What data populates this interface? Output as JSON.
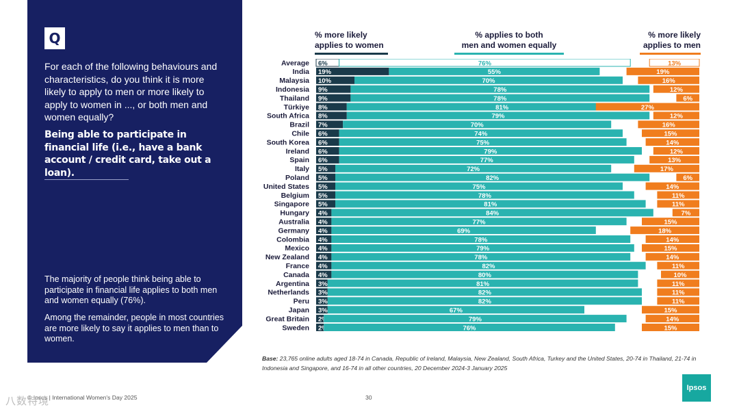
{
  "panel": {
    "badge": "Q",
    "question": "For each of the following behaviours and characteristics, do you think it is more likely to apply to men or more likely to apply to women in ..., or both men and women equally?",
    "emphasis": "Being able to participate in financial life (i.e., have a bank account / credit card, take out a loan).",
    "summary1": "The majority of people think being able to participate in financial life applies to both men and women equally (76%).",
    "summary2": "Among the remainder, people in most countries are more likely to say it applies to men than to women."
  },
  "headers": {
    "women": [
      "% more likely",
      "applies to women"
    ],
    "both": [
      "% applies to both",
      "men and women equally"
    ],
    "men": [
      "% more likely",
      "applies to men"
    ]
  },
  "colors": {
    "women": "#1a3a4a",
    "both": "#2ab3b0",
    "men": "#f07d1e",
    "average_both": "#ffffff",
    "average_women": "#ffffff",
    "average_men": "#ffffff"
  },
  "chart_data": {
    "type": "bar",
    "stacked": true,
    "orientation": "horizontal",
    "categories": [
      "Average",
      "India",
      "Malaysia",
      "Indonesia",
      "Thailand",
      "Türkiye",
      "South Africa",
      "Brazil",
      "Chile",
      "South Korea",
      "Ireland",
      "Spain",
      "Italy",
      "Poland",
      "United States",
      "Belgium",
      "Singapore",
      "Hungary",
      "Australia",
      "Germany",
      "Colombia",
      "Mexico",
      "New Zealand",
      "France",
      "Canada",
      "Argentina",
      "Netherlands",
      "Peru",
      "Japan",
      "Great Britain",
      "Sweden"
    ],
    "series": [
      {
        "name": "% more likely applies to women",
        "values": [
          6,
          19,
          10,
          9,
          9,
          8,
          8,
          7,
          6,
          6,
          6,
          6,
          5,
          5,
          5,
          5,
          5,
          4,
          4,
          4,
          4,
          4,
          4,
          4,
          4,
          3,
          3,
          3,
          3,
          2,
          2
        ]
      },
      {
        "name": "% applies to both men and women equally",
        "values": [
          76,
          55,
          70,
          78,
          78,
          81,
          79,
          70,
          74,
          75,
          79,
          77,
          72,
          82,
          75,
          78,
          81,
          84,
          77,
          69,
          78,
          79,
          78,
          82,
          80,
          81,
          82,
          82,
          67,
          79,
          76
        ]
      },
      {
        "name": "% more likely applies to men",
        "values": [
          13,
          19,
          16,
          12,
          6,
          27,
          12,
          16,
          15,
          14,
          12,
          13,
          17,
          6,
          14,
          11,
          11,
          7,
          15,
          18,
          14,
          15,
          14,
          11,
          10,
          11,
          11,
          11,
          15,
          14,
          15
        ]
      }
    ],
    "value_suffix": "%"
  },
  "base_note_label": "Base:",
  "base_note": "23,765 online adults aged 18-74 in Canada, Republic of Ireland, Malaysia, New Zealand, South Africa, Turkey and the United States, 20-74 in Thailand, 21-74 in Indonesia and Singapore, and 16-74 in all other countries, 20 December 2024-3 January 2025",
  "footer": {
    "source": "© Ipsos | International Women's Day 2025",
    "page": "30",
    "logo": "Ipsos",
    "watermark": "八数特境"
  }
}
